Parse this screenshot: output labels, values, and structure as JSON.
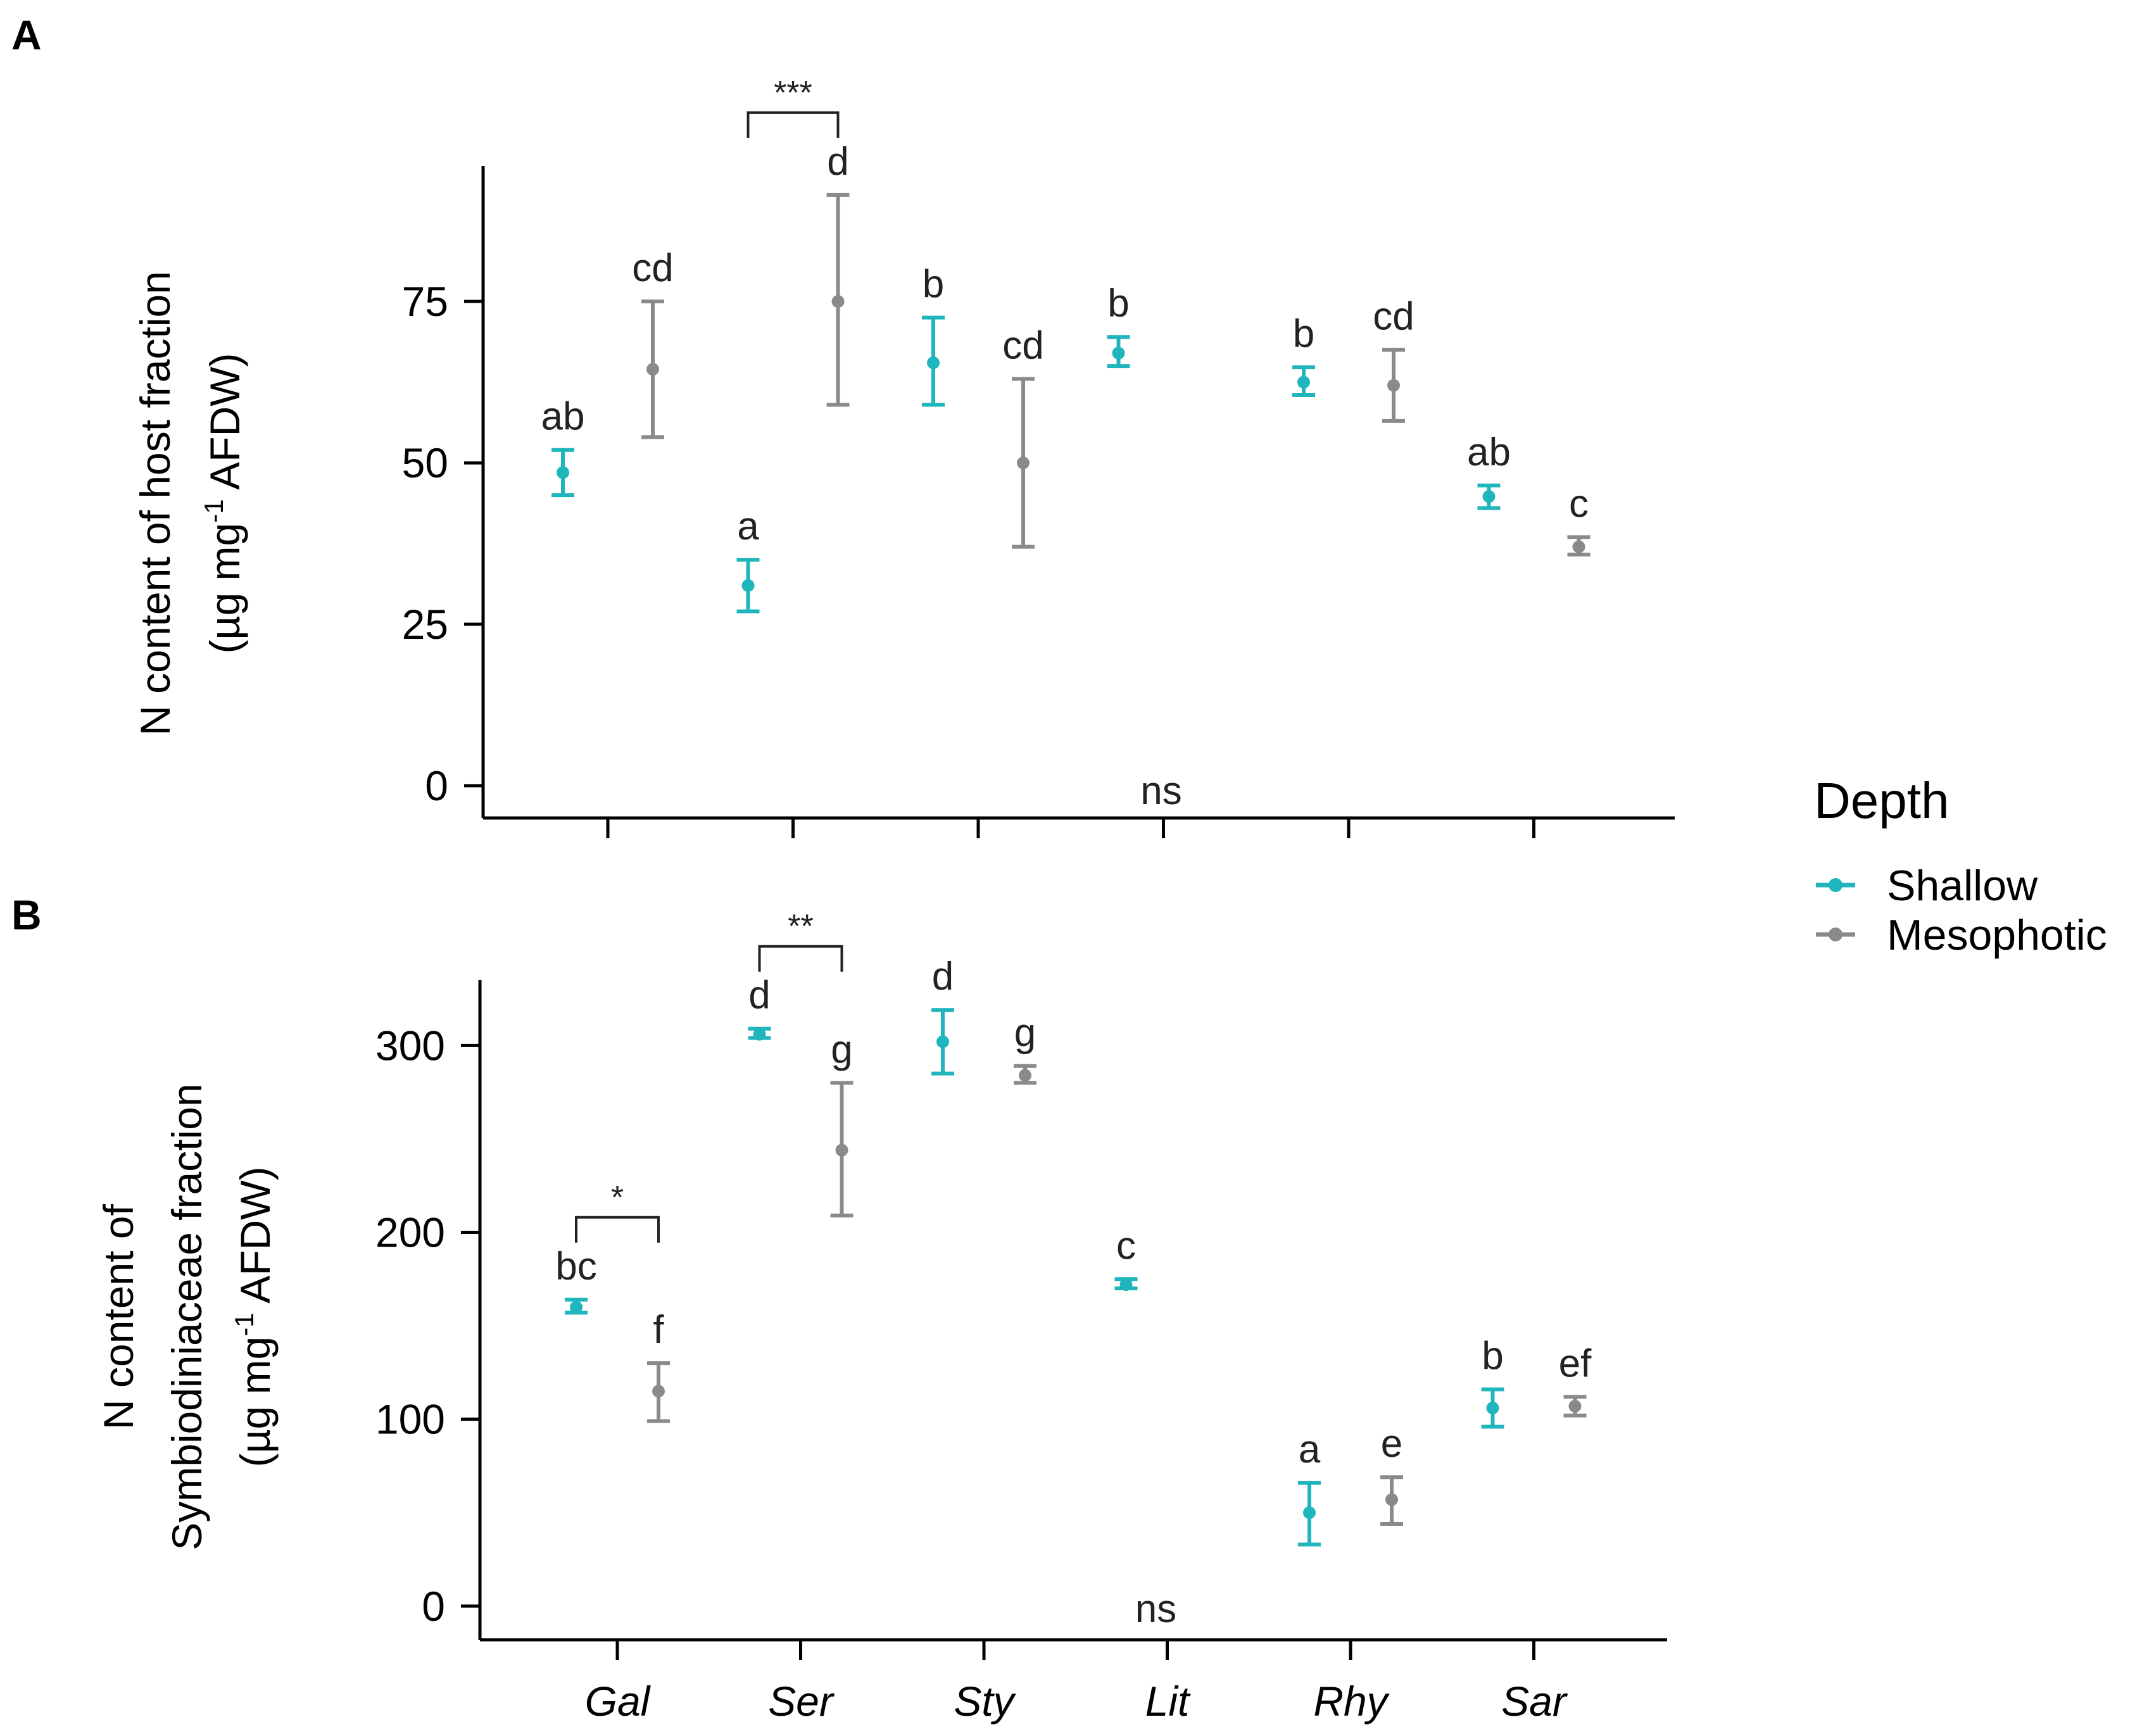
{
  "colors": {
    "shallow": "#1fb5bd",
    "mesophotic": "#8a8a8a",
    "axis": "#000000"
  },
  "legend": {
    "title": "Depth",
    "items": [
      "Shallow",
      "Mesophotic"
    ]
  },
  "chart_data": [
    {
      "panel": "A",
      "type": "scatter",
      "subtype": "point-with-errorbars",
      "ylabel_line1": "N content of host fraction",
      "ylabel_line2_prefix": "(µg mg",
      "ylabel_line2_sup": "-1",
      "ylabel_line2_suffix": " AFDW)",
      "ylim": [
        -5,
        96
      ],
      "yticks": [
        0,
        25,
        50,
        75
      ],
      "ytick_labels": [
        "0",
        "25",
        "50",
        "75"
      ],
      "categories": [
        "Gal",
        "Ser",
        "Sty",
        "Lit",
        "Rhy",
        "Sar"
      ],
      "series": [
        {
          "name": "Shallow",
          "mean": [
            48.5,
            31.0,
            65.5,
            67.0,
            62.5,
            44.8
          ],
          "lower": [
            45.0,
            27.0,
            59.0,
            65.0,
            60.5,
            43.0
          ],
          "upper": [
            52.0,
            35.0,
            72.5,
            69.5,
            64.8,
            46.5
          ],
          "letters": [
            "ab",
            "a",
            "b",
            "b",
            "b",
            "ab"
          ]
        },
        {
          "name": "Mesophotic",
          "mean": [
            64.5,
            75.0,
            50.0,
            null,
            62.0,
            37.0
          ],
          "lower": [
            54.0,
            59.0,
            37.0,
            null,
            56.5,
            35.8
          ],
          "upper": [
            75.0,
            91.5,
            63.0,
            null,
            67.5,
            38.5
          ],
          "letters": [
            "cd",
            "d",
            "cd",
            "",
            "cd",
            "c"
          ]
        }
      ],
      "annotations": {
        "ns": "ns",
        "brackets": [
          {
            "category": "Ser",
            "label": "***"
          }
        ]
      }
    },
    {
      "panel": "B",
      "type": "scatter",
      "subtype": "point-with-errorbars",
      "ylabel_line1": "N content of",
      "ylabel_line2": "Symbiodiniaceae fraction",
      "ylabel_line3_prefix": "(µg mg",
      "ylabel_line3_sup": "-1",
      "ylabel_line3_suffix": " AFDW)",
      "ylim": [
        -18,
        335
      ],
      "yticks": [
        0,
        100,
        200,
        300
      ],
      "ytick_labels": [
        "0",
        "100",
        "200",
        "300"
      ],
      "categories": [
        "Gal",
        "Ser",
        "Sty",
        "Lit",
        "Rhy",
        "Sar"
      ],
      "series": [
        {
          "name": "Shallow",
          "mean": [
            160,
            306,
            302,
            172,
            50,
            106
          ],
          "lower": [
            157,
            304,
            285,
            170,
            33,
            96
          ],
          "upper": [
            164,
            309,
            319,
            175,
            66,
            116
          ],
          "letters": [
            "bc",
            "d",
            "d",
            "c",
            "a",
            "b"
          ]
        },
        {
          "name": "Mesophotic",
          "mean": [
            115,
            244,
            284,
            null,
            57,
            107
          ],
          "lower": [
            99,
            209,
            280,
            null,
            44,
            102
          ],
          "upper": [
            130,
            280,
            289,
            null,
            69,
            112
          ],
          "letters": [
            "f",
            "g",
            "g",
            "",
            "e",
            "ef"
          ]
        }
      ],
      "annotations": {
        "ns": "ns",
        "brackets": [
          {
            "category": "Gal",
            "label": "*"
          },
          {
            "category": "Ser",
            "label": "**"
          }
        ]
      }
    }
  ]
}
